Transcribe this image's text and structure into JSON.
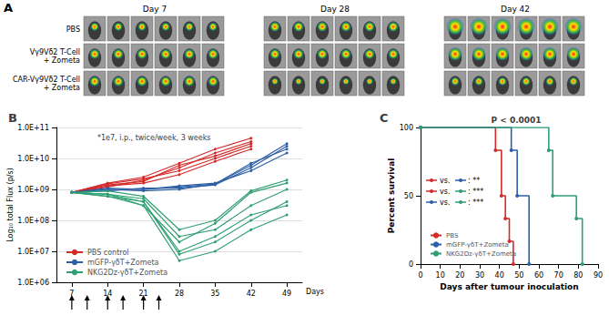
{
  "panel_a": {
    "label": "A",
    "days": [
      "Day 7",
      "Day 28",
      "Day 42"
    ],
    "groups": [
      "PBS",
      "Vγ9Vδ2 T-Cell\n+ Zometa",
      "CAR-Vγ9Vδ2 T-Cell\n+ Zometa"
    ],
    "images_per_day": 6
  },
  "chart_data": [
    {
      "type": "line",
      "title": "B",
      "annotations": [
        "*1e7, i.p., twice/week, 3 weeks"
      ],
      "x_label": "Days",
      "y_label": "Log₁₀ total Flux (p/s)",
      "x": [
        7,
        14,
        21,
        28,
        35,
        42,
        49
      ],
      "xlim": [
        4,
        52
      ],
      "xticks": [
        7,
        14,
        21,
        28,
        35,
        42,
        49
      ],
      "ylim": [
        1000000,
        100000000000
      ],
      "yticks": [
        {
          "value": 1000000,
          "label": "1.0E+06"
        },
        {
          "value": 10000000,
          "label": "1.0E+07"
        },
        {
          "value": 100000000,
          "label": "1.0E+08"
        },
        {
          "value": 1000000000,
          "label": "1.0E+09"
        },
        {
          "value": 10000000000,
          "label": "1.0E+10"
        },
        {
          "value": 100000000000,
          "label": "1.0E+11"
        }
      ],
      "log": "y",
      "grid": true,
      "legend": "lower left",
      "marker": "circle",
      "line_style": "solid",
      "treatment_days": [
        7,
        10,
        14,
        17,
        21,
        24
      ],
      "series": [
        {
          "name": "PBS control",
          "color": "#d42a2a",
          "values": [
            800000000,
            1600000000,
            2500000000,
            7000000000,
            20000000000,
            45000000000,
            null
          ]
        },
        {
          "name": "PBS control",
          "color": "#d42a2a",
          "values": [
            800000000,
            1200000000,
            2000000000,
            5000000000,
            15000000000,
            35000000000,
            null
          ]
        },
        {
          "name": "PBS control",
          "color": "#d42a2a",
          "values": [
            800000000,
            1400000000,
            1800000000,
            6000000000,
            12000000000,
            30000000000,
            null
          ]
        },
        {
          "name": "PBS control",
          "color": "#d42a2a",
          "values": [
            800000000,
            1500000000,
            2200000000,
            4000000000,
            10000000000,
            25000000000,
            null
          ]
        },
        {
          "name": "PBS control",
          "color": "#d42a2a",
          "values": [
            800000000,
            1300000000,
            1600000000,
            3000000000,
            8000000000,
            20000000000,
            null
          ]
        },
        {
          "name": "mGFP-γδT+Zometa",
          "color": "#2d5fa6",
          "values": [
            800000000,
            1000000000,
            1000000000,
            1200000000,
            1500000000,
            6000000000,
            30000000000
          ]
        },
        {
          "name": "mGFP-γδT+Zometa",
          "color": "#2d5fa6",
          "values": [
            800000000,
            900000000,
            1100000000,
            1100000000,
            1400000000,
            5000000000,
            25000000000
          ]
        },
        {
          "name": "mGFP-γδT+Zometa",
          "color": "#2d5fa6",
          "values": [
            800000000,
            1000000000,
            900000000,
            1000000000,
            1500000000,
            7000000000,
            20000000000
          ]
        },
        {
          "name": "mGFP-γδT+Zometa",
          "color": "#2d5fa6",
          "values": [
            800000000,
            1100000000,
            1000000000,
            1300000000,
            1600000000,
            4000000000,
            15000000000
          ]
        },
        {
          "name": "NKG2Dz-γδT+Zometa",
          "color": "#2f9f73",
          "values": [
            800000000,
            900000000,
            600000000,
            50000000,
            100000000,
            900000000,
            2000000000
          ]
        },
        {
          "name": "NKG2Dz-γδT+Zometa",
          "color": "#2f9f73",
          "values": [
            800000000,
            700000000,
            500000000,
            30000000,
            50000000,
            300000000,
            1000000000
          ]
        },
        {
          "name": "NKG2Dz-γδT+Zometa",
          "color": "#2f9f73",
          "values": [
            800000000,
            600000000,
            400000000,
            10000000,
            30000000,
            150000000,
            300000000
          ]
        },
        {
          "name": "NKG2Dz-γδT+Zometa",
          "color": "#2f9f73",
          "values": [
            800000000,
            700000000,
            300000000,
            5000000,
            10000000,
            50000000,
            150000000
          ]
        },
        {
          "name": "NKG2Dz-γδT+Zometa",
          "color": "#2f9f73",
          "values": [
            800000000,
            600000000,
            300000000,
            20000000,
            80000000,
            800000000,
            1600000000
          ]
        },
        {
          "name": "NKG2Dz-γδT+Zometa",
          "color": "#2f9f73",
          "values": [
            800000000,
            700000000,
            400000000,
            8000000,
            20000000,
            100000000,
            400000000
          ]
        }
      ]
    },
    {
      "type": "line",
      "title": "C",
      "annotations": [
        "P < 0.0001"
      ],
      "x_label": "Days after tumour inoculation",
      "y_label": "Percent survival",
      "xlim": [
        0,
        90
      ],
      "xticks": [
        0,
        10,
        20,
        30,
        40,
        50,
        60,
        70,
        80,
        90
      ],
      "ylim": [
        0,
        100
      ],
      "yticks": [
        0,
        50,
        100
      ],
      "grid": false,
      "legend": "lower left",
      "marker": "circle",
      "line_style": "step",
      "comparisons": [
        {
          "pair": [
            "PBS",
            "mGFP-γδT+Zometa"
          ],
          "word": "vs.",
          "label": ": **"
        },
        {
          "pair": [
            "PBS",
            "NKG2Dz-γδT+Zometa"
          ],
          "word": "vs.",
          "label": ": ***"
        },
        {
          "pair": [
            "mGFP-γδT+Zometa",
            "NKG2Dz-γδT+Zometa"
          ],
          "word": "vs.",
          "label": ": ***"
        }
      ],
      "series": [
        {
          "name": "PBS",
          "color": "#d42a2a",
          "x": [
            0,
            38,
            41,
            43,
            45,
            47
          ],
          "values": [
            100,
            83.3,
            50,
            33.3,
            16.7,
            0
          ]
        },
        {
          "name": "mGFP-γδT+Zometa",
          "color": "#2d5fa6",
          "x": [
            0,
            46,
            49,
            55
          ],
          "values": [
            100,
            83.3,
            50,
            0
          ]
        },
        {
          "name": "NKG2Dz-γδT+Zometa",
          "color": "#2f9f73",
          "x": [
            0,
            65,
            67,
            79,
            82
          ],
          "values": [
            100,
            83.3,
            50,
            33.3,
            0
          ]
        }
      ]
    }
  ]
}
